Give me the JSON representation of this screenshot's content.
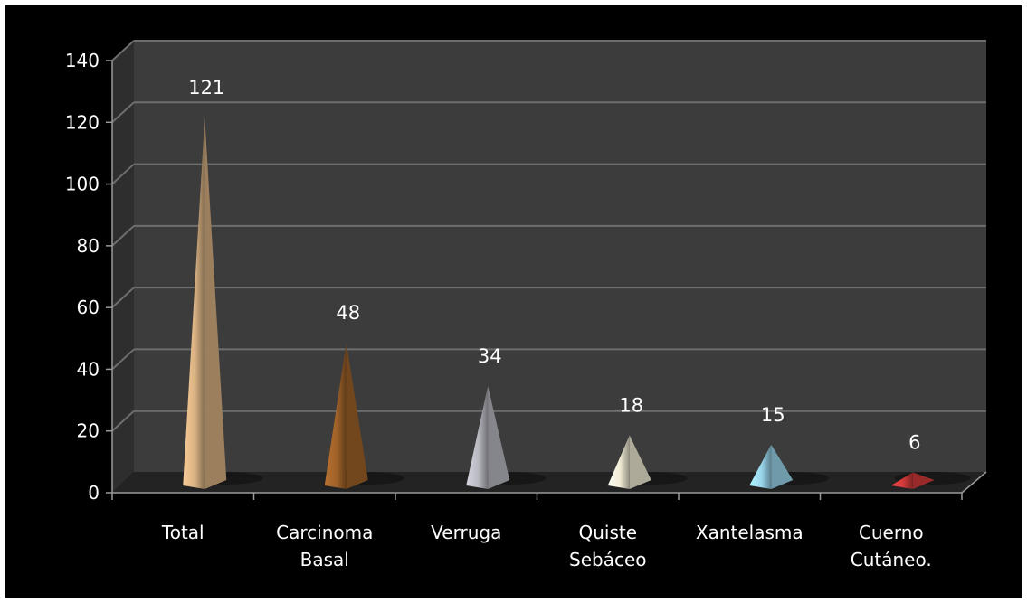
{
  "chart_data": {
    "type": "bar",
    "bar_shape": "pyramid",
    "categories": [
      [
        "Total"
      ],
      [
        "Carcinoma",
        "Basal"
      ],
      [
        "Verruga"
      ],
      [
        "Quiste",
        "Sebáceo"
      ],
      [
        "Xantelasma"
      ],
      [
        "Cuerno",
        "Cutáneo."
      ]
    ],
    "values": [
      121,
      48,
      34,
      18,
      15,
      6
    ],
    "data_labels": [
      "121",
      "48",
      "34",
      "18",
      "15",
      "6"
    ],
    "y_ticks": [
      "0",
      "20",
      "40",
      "60",
      "80",
      "100",
      "120",
      "140"
    ],
    "ylim": [
      0,
      140
    ],
    "grid": true,
    "legend": "none",
    "title": "",
    "xlabel": "",
    "ylabel": "",
    "colors": {
      "background": "#000000",
      "wall": "#3c3c3c",
      "gridline": "#6e6e6e",
      "text": "#ffffff",
      "bars": [
        "#d9b283",
        "#a0622a",
        "#b9b9c2",
        "#f2ecd6",
        "#9ad6ec",
        "#d33a3a"
      ]
    }
  }
}
